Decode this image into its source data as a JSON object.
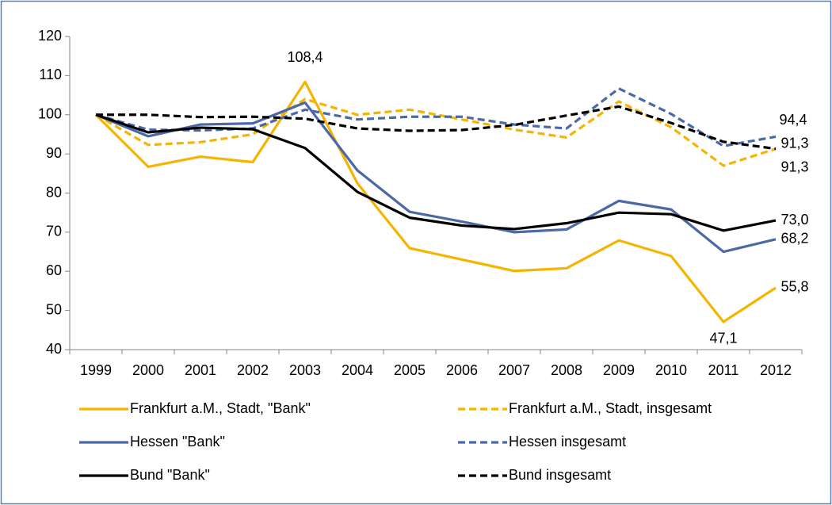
{
  "chart_data": {
    "type": "line",
    "categories": [
      "1999",
      "2000",
      "2001",
      "2002",
      "2003",
      "2004",
      "2005",
      "2006",
      "2007",
      "2008",
      "2009",
      "2010",
      "2011",
      "2012"
    ],
    "series": [
      {
        "name": "Frankfurt a.M., Stadt, \"Bank\"",
        "color": "#f5b400",
        "dash": false,
        "values": [
          100,
          86.7,
          89.3,
          87.9,
          108.4,
          82.5,
          65.9,
          63,
          60.1,
          60.8,
          67.9,
          63.9,
          47.1,
          55.8
        ],
        "value_labels": [
          null,
          null,
          null,
          null,
          "108,4",
          null,
          null,
          null,
          null,
          null,
          null,
          null,
          "47,1",
          "55,8"
        ]
      },
      {
        "name": "Frankfurt a.M., Stadt, insgesamt",
        "color": "#f5b400",
        "dash": true,
        "values": [
          100,
          92.3,
          93,
          95,
          104,
          100,
          101.3,
          98.8,
          96.2,
          94.2,
          103.4,
          96.8,
          87,
          91.3
        ],
        "value_labels": [
          null,
          null,
          null,
          null,
          null,
          null,
          null,
          null,
          null,
          null,
          null,
          null,
          null,
          "91,3"
        ]
      },
      {
        "name": "Hessen \"Bank\"",
        "color": "#4a69a6",
        "dash": false,
        "values": [
          100,
          94.5,
          97.5,
          97.8,
          103.1,
          85.8,
          75.2,
          72.7,
          70,
          70.7,
          78,
          75.8,
          65,
          68.2
        ],
        "value_labels": [
          null,
          null,
          null,
          null,
          null,
          null,
          null,
          null,
          null,
          null,
          null,
          null,
          null,
          "68,2"
        ]
      },
      {
        "name": "Hessen insgesamt",
        "color": "#4a69a6",
        "dash": true,
        "values": [
          100,
          96.2,
          96,
          96.5,
          101.3,
          98.8,
          99.5,
          99.5,
          97.5,
          96.5,
          106.7,
          100.2,
          92,
          94.4
        ],
        "value_labels": [
          null,
          null,
          null,
          null,
          null,
          null,
          null,
          null,
          null,
          null,
          null,
          null,
          null,
          "94,4"
        ]
      },
      {
        "name": "Bund \"Bank\"",
        "color": "#000000",
        "dash": false,
        "values": [
          100,
          95.5,
          96.7,
          96.3,
          91.5,
          80.3,
          73.7,
          71.7,
          70.8,
          72.3,
          75,
          74.6,
          70.4,
          73
        ],
        "value_labels": [
          null,
          null,
          null,
          null,
          null,
          null,
          null,
          null,
          null,
          null,
          null,
          null,
          null,
          "73,0"
        ]
      },
      {
        "name": "Bund insgesamt",
        "color": "#000000",
        "dash": true,
        "values": [
          100,
          100,
          99.4,
          99.5,
          99,
          96.5,
          95.9,
          96.1,
          97.4,
          99.8,
          102.1,
          97.9,
          93.1,
          91.3
        ],
        "value_labels": [
          null,
          null,
          null,
          null,
          null,
          null,
          null,
          null,
          null,
          null,
          null,
          null,
          null,
          "91,3"
        ]
      }
    ],
    "ylim": [
      40,
      120
    ],
    "yticks": [
      40,
      50,
      60,
      70,
      80,
      90,
      100,
      110,
      120
    ],
    "grid": false
  }
}
